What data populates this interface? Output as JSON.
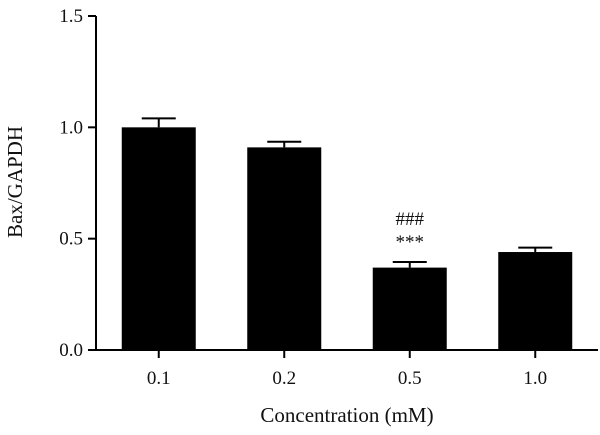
{
  "chart_data": {
    "type": "bar",
    "title": "",
    "xlabel": "Concentration (mM)",
    "ylabel": "Bax/GAPDH",
    "categories": [
      "0.1",
      "0.2",
      "0.5",
      "1.0"
    ],
    "values": [
      1.0,
      0.91,
      0.37,
      0.44
    ],
    "errors": [
      0.04,
      0.025,
      0.025,
      0.02
    ],
    "annotations": [
      {
        "category": "0.5",
        "lines": [
          "###",
          "***"
        ]
      }
    ],
    "ylim": [
      0,
      1.5
    ],
    "yticks": [
      "0.0",
      "0.5",
      "1.0",
      "1.5"
    ],
    "grid": false,
    "colors": {
      "bar": "#000000",
      "axis": "#000000"
    }
  }
}
